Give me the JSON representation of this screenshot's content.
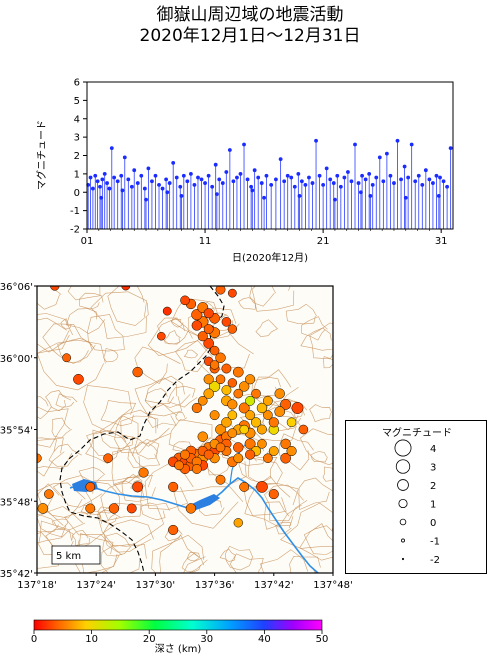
{
  "title_line1": "御嶽山周辺域の地震活動",
  "title_line2": "2020年12月1日〜12月31日",
  "colors": {
    "stem": "#2a3cff",
    "point": "#1a2cff",
    "contour": "#c8915a",
    "river": "#2f8fe6",
    "lake": "#2a7fe0",
    "border": "#000000"
  },
  "chart_data": [
    {
      "type": "scatter",
      "subtype": "stem",
      "title": "",
      "xlabel": "日(2020年12月)",
      "ylabel": "マグニチュード",
      "ylim": [
        -2,
        6
      ],
      "yticks": [
        "-2",
        "-1",
        "0",
        "1",
        "2",
        "3",
        "4",
        "5",
        "6"
      ],
      "xticks": [
        "01",
        "11",
        "21",
        "31"
      ],
      "xlim": [
        1,
        32
      ],
      "baseline": -2,
      "points": [
        [
          1.1,
          0.4
        ],
        [
          1.3,
          0.8
        ],
        [
          1.5,
          0.2
        ],
        [
          1.7,
          0.9
        ],
        [
          1.9,
          0.6
        ],
        [
          2.1,
          0.3
        ],
        [
          2.3,
          0.7
        ],
        [
          2.5,
          1.0
        ],
        [
          2.7,
          0.5
        ],
        [
          2.9,
          0.2
        ],
        [
          3.1,
          2.4
        ],
        [
          3.3,
          0.8
        ],
        [
          3.6,
          0.6
        ],
        [
          3.9,
          0.9
        ],
        [
          4.2,
          1.9
        ],
        [
          4.5,
          0.7
        ],
        [
          4.8,
          0.3
        ],
        [
          5.0,
          1.2
        ],
        [
          5.3,
          0.5
        ],
        [
          5.6,
          0.9
        ],
        [
          5.9,
          0.2
        ],
        [
          6.2,
          1.3
        ],
        [
          6.5,
          0.6
        ],
        [
          6.8,
          0.9
        ],
        [
          7.1,
          0.4
        ],
        [
          7.4,
          0.2
        ],
        [
          7.7,
          0.7
        ],
        [
          8.0,
          0.5
        ],
        [
          8.3,
          1.6
        ],
        [
          8.6,
          0.8
        ],
        [
          8.9,
          0.3
        ],
        [
          9.2,
          0.9
        ],
        [
          9.5,
          0.6
        ],
        [
          9.8,
          1.0
        ],
        [
          10.1,
          0.4
        ],
        [
          10.4,
          0.8
        ],
        [
          10.7,
          0.7
        ],
        [
          11.0,
          0.5
        ],
        [
          11.3,
          0.9
        ],
        [
          11.6,
          0.3
        ],
        [
          11.9,
          1.5
        ],
        [
          12.2,
          0.7
        ],
        [
          12.5,
          0.5
        ],
        [
          12.8,
          1.1
        ],
        [
          13.1,
          2.3
        ],
        [
          13.4,
          0.6
        ],
        [
          13.7,
          0.8
        ],
        [
          14.0,
          1.0
        ],
        [
          14.3,
          2.6
        ],
        [
          14.6,
          0.7
        ],
        [
          14.9,
          0.3
        ],
        [
          15.2,
          1.2
        ],
        [
          15.5,
          0.8
        ],
        [
          15.8,
          0.5
        ],
        [
          16.2,
          0.9
        ],
        [
          16.6,
          0.4
        ],
        [
          17.0,
          0.7
        ],
        [
          17.4,
          1.8
        ],
        [
          17.7,
          0.6
        ],
        [
          18.0,
          0.9
        ],
        [
          18.3,
          0.8
        ],
        [
          18.6,
          0.3
        ],
        [
          18.9,
          1.0
        ],
        [
          19.2,
          0.6
        ],
        [
          19.5,
          0.4
        ],
        [
          19.8,
          0.8
        ],
        [
          20.1,
          0.5
        ],
        [
          20.4,
          2.8
        ],
        [
          20.7,
          0.9
        ],
        [
          21.0,
          0.4
        ],
        [
          21.3,
          1.3
        ],
        [
          21.6,
          0.7
        ],
        [
          21.9,
          0.5
        ],
        [
          22.2,
          0.9
        ],
        [
          22.5,
          0.3
        ],
        [
          22.8,
          0.8
        ],
        [
          23.1,
          1.1
        ],
        [
          23.4,
          0.6
        ],
        [
          23.7,
          2.6
        ],
        [
          24.0,
          0.5
        ],
        [
          24.3,
          0.9
        ],
        [
          24.6,
          0.7
        ],
        [
          24.9,
          1.0
        ],
        [
          25.2,
          0.4
        ],
        [
          25.5,
          0.8
        ],
        [
          25.8,
          1.9
        ],
        [
          26.1,
          0.6
        ],
        [
          26.4,
          2.1
        ],
        [
          26.7,
          0.9
        ],
        [
          27.0,
          0.5
        ],
        [
          27.3,
          2.8
        ],
        [
          27.6,
          0.7
        ],
        [
          27.9,
          1.4
        ],
        [
          28.2,
          0.8
        ],
        [
          28.5,
          2.6
        ],
        [
          28.8,
          0.6
        ],
        [
          29.1,
          0.9
        ],
        [
          29.4,
          0.4
        ],
        [
          29.7,
          1.2
        ],
        [
          30.0,
          0.7
        ],
        [
          30.3,
          0.5
        ],
        [
          30.6,
          0.9
        ],
        [
          30.9,
          0.8
        ],
        [
          31.2,
          0.6
        ],
        [
          31.5,
          0.3
        ],
        [
          31.8,
          2.4
        ],
        [
          2.2,
          -0.3
        ],
        [
          6.0,
          -0.4
        ],
        [
          9.0,
          -0.2
        ],
        [
          12.0,
          -0.1
        ],
        [
          16.0,
          -0.3
        ],
        [
          19.0,
          -0.2
        ],
        [
          22.0,
          -0.4
        ],
        [
          25.0,
          -0.2
        ],
        [
          28.0,
          -0.3
        ],
        [
          30.8,
          -0.2
        ],
        [
          4.0,
          0.1
        ],
        [
          7.8,
          0.0
        ],
        [
          15.0,
          0.1
        ],
        [
          24.2,
          0.0
        ]
      ]
    },
    {
      "type": "scatter",
      "subtype": "map",
      "title": "",
      "ylabels": [
        "36°06'",
        "36°00'",
        "35°54'",
        "35°48'",
        "35°42'"
      ],
      "xlabels": [
        "137°18'",
        "137°24'",
        "137°30'",
        "137°36'",
        "137°42'",
        "137°48'"
      ],
      "xlim": [
        137.3,
        137.8
      ],
      "ylim": [
        35.7,
        36.1
      ],
      "scale_label": "5 km",
      "legend_title": "マグニチュード",
      "legend_mags": [
        "4",
        "3",
        "2",
        "1",
        "0",
        "-1",
        "-2"
      ],
      "colorbar_label": "深さ (km)",
      "colorbar_ticks": [
        "0",
        "10",
        "20",
        "30",
        "40",
        "50"
      ],
      "depth_range": [
        0,
        50
      ],
      "events": [
        [
          137.33,
          36.1,
          1.2,
          3
        ],
        [
          137.45,
          36.1,
          1.0,
          2
        ],
        [
          137.61,
          36.095,
          1.4,
          4
        ],
        [
          137.63,
          36.09,
          1.0,
          3
        ],
        [
          137.55,
          36.08,
          1.3,
          3
        ],
        [
          137.56,
          36.075,
          1.6,
          4
        ],
        [
          137.58,
          36.07,
          1.8,
          5
        ],
        [
          137.57,
          36.06,
          1.9,
          4
        ],
        [
          137.59,
          36.062,
          1.5,
          3
        ],
        [
          137.6,
          36.055,
          1.7,
          4
        ],
        [
          137.58,
          36.05,
          2.0,
          5
        ],
        [
          137.57,
          36.045,
          1.6,
          3
        ],
        [
          137.59,
          36.04,
          1.4,
          4
        ],
        [
          137.6,
          36.035,
          1.8,
          5
        ],
        [
          137.58,
          36.03,
          1.5,
          4
        ],
        [
          137.59,
          36.02,
          1.7,
          3
        ],
        [
          137.6,
          36.01,
          1.3,
          4
        ],
        [
          137.61,
          36.0,
          1.6,
          5
        ],
        [
          137.59,
          35.995,
          1.2,
          3
        ],
        [
          137.6,
          35.985,
          1.4,
          4
        ],
        [
          137.62,
          36.05,
          1.3,
          3
        ],
        [
          137.63,
          36.04,
          1.2,
          4
        ],
        [
          137.52,
          36.065,
          1.0,
          2
        ],
        [
          137.51,
          36.03,
          0.9,
          3
        ],
        [
          137.35,
          36.0,
          1.0,
          4
        ],
        [
          137.37,
          35.97,
          1.7,
          3
        ],
        [
          137.47,
          35.98,
          1.6,
          4
        ],
        [
          137.59,
          35.97,
          1.5,
          6
        ],
        [
          137.6,
          35.96,
          1.9,
          10
        ],
        [
          137.61,
          35.97,
          1.3,
          5
        ],
        [
          137.62,
          35.955,
          1.4,
          8
        ],
        [
          137.63,
          35.965,
          1.2,
          4
        ],
        [
          137.65,
          35.96,
          1.6,
          6
        ],
        [
          137.64,
          35.95,
          1.3,
          5
        ],
        [
          137.62,
          35.94,
          1.7,
          7
        ],
        [
          137.63,
          35.935,
          1.5,
          6
        ],
        [
          137.65,
          35.93,
          1.8,
          5
        ],
        [
          137.66,
          35.92,
          1.4,
          7
        ],
        [
          137.68,
          35.93,
          1.6,
          8
        ],
        [
          137.69,
          35.92,
          1.3,
          6
        ],
        [
          137.7,
          35.91,
          1.5,
          5
        ],
        [
          137.71,
          35.925,
          1.7,
          6
        ],
        [
          137.72,
          35.935,
          1.8,
          4
        ],
        [
          137.74,
          35.93,
          2.2,
          3
        ],
        [
          137.7,
          35.9,
          1.6,
          10
        ],
        [
          137.68,
          35.9,
          1.4,
          7
        ],
        [
          137.66,
          35.895,
          1.7,
          6
        ],
        [
          137.65,
          35.905,
          1.9,
          5
        ],
        [
          137.64,
          35.9,
          1.5,
          7
        ],
        [
          137.63,
          35.895,
          1.3,
          6
        ],
        [
          137.62,
          35.89,
          1.6,
          5
        ],
        [
          137.61,
          35.885,
          1.8,
          4
        ],
        [
          137.6,
          35.88,
          1.4,
          6
        ],
        [
          137.59,
          35.875,
          1.7,
          5
        ],
        [
          137.58,
          35.87,
          1.5,
          4
        ],
        [
          137.57,
          35.865,
          1.9,
          5
        ],
        [
          137.56,
          35.86,
          1.6,
          4
        ],
        [
          137.55,
          35.855,
          1.8,
          3
        ],
        [
          137.57,
          35.855,
          1.5,
          5
        ],
        [
          137.58,
          35.86,
          1.7,
          6
        ],
        [
          137.59,
          35.865,
          1.4,
          4
        ],
        [
          137.6,
          35.87,
          1.6,
          3
        ],
        [
          137.61,
          35.875,
          1.3,
          5
        ],
        [
          137.62,
          35.88,
          1.5,
          4
        ],
        [
          137.56,
          35.87,
          1.7,
          4
        ],
        [
          137.55,
          35.865,
          1.4,
          5
        ],
        [
          137.54,
          35.86,
          1.9,
          4
        ],
        [
          137.53,
          35.855,
          1.6,
          3
        ],
        [
          137.54,
          35.85,
          1.3,
          5
        ],
        [
          137.55,
          35.845,
          1.5,
          4
        ],
        [
          137.56,
          35.85,
          1.8,
          4
        ],
        [
          137.57,
          35.845,
          1.4,
          5
        ],
        [
          137.58,
          35.85,
          1.6,
          3
        ],
        [
          137.6,
          35.86,
          1.5,
          6
        ],
        [
          137.62,
          35.87,
          1.4,
          5
        ],
        [
          137.64,
          35.875,
          1.6,
          4
        ],
        [
          137.66,
          35.88,
          1.8,
          5
        ],
        [
          137.67,
          35.87,
          1.5,
          8
        ],
        [
          137.68,
          35.88,
          1.3,
          6
        ],
        [
          137.7,
          35.87,
          1.4,
          7
        ],
        [
          137.72,
          35.88,
          1.6,
          5
        ],
        [
          137.73,
          35.87,
          1.5,
          6
        ],
        [
          137.72,
          35.86,
          1.7,
          4
        ],
        [
          137.69,
          35.86,
          1.3,
          5
        ],
        [
          137.66,
          35.865,
          1.5,
          4
        ],
        [
          137.64,
          35.86,
          1.4,
          6
        ],
        [
          137.63,
          35.855,
          1.7,
          5
        ],
        [
          137.65,
          35.9,
          1.2,
          9
        ],
        [
          137.67,
          35.91,
          1.5,
          8
        ],
        [
          137.69,
          35.94,
          1.4,
          7
        ],
        [
          137.71,
          35.95,
          1.6,
          6
        ],
        [
          137.67,
          35.95,
          1.3,
          5
        ],
        [
          137.66,
          35.97,
          1.5,
          6
        ],
        [
          137.64,
          35.98,
          1.7,
          5
        ],
        [
          137.62,
          35.985,
          1.4,
          4
        ],
        [
          137.6,
          35.99,
          1.2,
          5
        ],
        [
          137.59,
          35.95,
          1.6,
          7
        ],
        [
          137.58,
          35.94,
          1.3,
          6
        ],
        [
          137.57,
          35.93,
          1.5,
          5
        ],
        [
          137.6,
          35.92,
          1.4,
          6
        ],
        [
          137.62,
          35.91,
          1.6,
          7
        ],
        [
          137.63,
          35.92,
          1.3,
          8
        ],
        [
          137.61,
          35.9,
          1.7,
          6
        ],
        [
          137.75,
          35.9,
          1.3,
          4
        ],
        [
          137.68,
          35.82,
          2.1,
          3
        ],
        [
          137.7,
          35.81,
          1.5,
          4
        ],
        [
          137.65,
          35.82,
          1.4,
          5
        ],
        [
          137.53,
          35.82,
          1.5,
          4
        ],
        [
          137.47,
          35.82,
          1.8,
          3
        ],
        [
          137.56,
          35.79,
          1.6,
          5
        ],
        [
          137.61,
          35.83,
          1.4,
          5
        ],
        [
          137.46,
          35.79,
          1.4,
          3
        ],
        [
          137.43,
          35.79,
          1.6,
          4
        ],
        [
          137.39,
          35.79,
          1.4,
          5
        ],
        [
          137.32,
          35.81,
          1.3,
          5
        ],
        [
          137.31,
          35.79,
          1.7,
          6
        ],
        [
          137.39,
          35.82,
          1.3,
          4
        ],
        [
          137.3,
          35.86,
          1.2,
          5
        ],
        [
          137.53,
          35.76,
          1.5,
          4
        ],
        [
          137.64,
          35.77,
          1.2,
          7
        ],
        [
          137.42,
          35.86,
          1.3,
          4
        ],
        [
          137.48,
          35.84,
          1.5,
          5
        ],
        [
          137.58,
          35.89,
          1.6,
          6
        ],
        [
          137.66,
          35.94,
          1.4,
          12
        ],
        [
          137.73,
          35.91,
          1.3,
          9
        ]
      ]
    }
  ]
}
